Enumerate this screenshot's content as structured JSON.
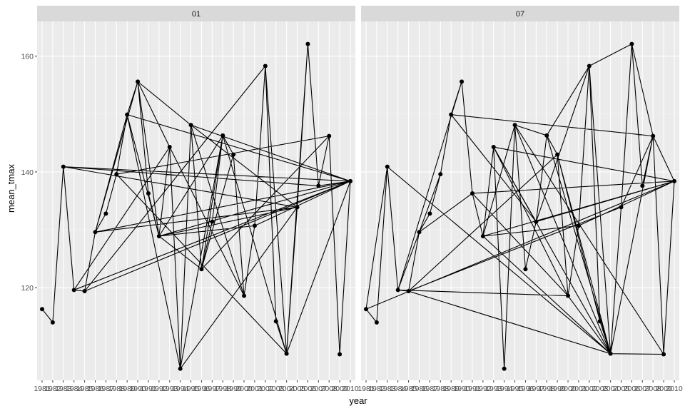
{
  "chart_data": {
    "type": "line",
    "facets": [
      "01",
      "07"
    ],
    "xlabel": "year",
    "ylabel": "mean_tmax",
    "x_ticks": [
      "1981",
      "1982",
      "1983",
      "1984",
      "1985",
      "1986",
      "1987",
      "1988",
      "1989",
      "1990",
      "1991",
      "1992",
      "1993",
      "1994",
      "1995",
      "1996",
      "1997",
      "1998",
      "1999",
      "2000",
      "2001",
      "2002",
      "2003",
      "2004",
      "2005",
      "2006",
      "2007",
      "2008",
      "2009",
      "2010"
    ],
    "y_ticks": [
      120,
      140,
      160
    ],
    "ylim": [
      104,
      166
    ],
    "grid": true,
    "points": [
      {
        "year": 1981,
        "mean_tmax": 116.3
      },
      {
        "year": 1982,
        "mean_tmax": 114.0
      },
      {
        "year": 1983,
        "mean_tmax": 140.9
      },
      {
        "year": 1984,
        "mean_tmax": 119.6
      },
      {
        "year": 1985,
        "mean_tmax": 119.4
      },
      {
        "year": 1986,
        "mean_tmax": 129.6
      },
      {
        "year": 1987,
        "mean_tmax": 132.8
      },
      {
        "year": 1988,
        "mean_tmax": 139.6
      },
      {
        "year": 1989,
        "mean_tmax": 149.9
      },
      {
        "year": 1990,
        "mean_tmax": 155.6
      },
      {
        "year": 1991,
        "mean_tmax": 136.3
      },
      {
        "year": 1992,
        "mean_tmax": 128.9
      },
      {
        "year": 1993,
        "mean_tmax": 144.3
      },
      {
        "year": 1994,
        "mean_tmax": 106.0
      },
      {
        "year": 1995,
        "mean_tmax": 148.1
      },
      {
        "year": 1996,
        "mean_tmax": 123.2
      },
      {
        "year": 1997,
        "mean_tmax": 131.4
      },
      {
        "year": 1998,
        "mean_tmax": 146.3
      },
      {
        "year": 1999,
        "mean_tmax": 143.0
      },
      {
        "year": 2000,
        "mean_tmax": 118.6
      },
      {
        "year": 2001,
        "mean_tmax": 130.7
      },
      {
        "year": 2002,
        "mean_tmax": 158.3
      },
      {
        "year": 2003,
        "mean_tmax": 114.2
      },
      {
        "year": 2004,
        "mean_tmax": 108.6
      },
      {
        "year": 2005,
        "mean_tmax": 133.9
      },
      {
        "year": 2006,
        "mean_tmax": 162.1
      },
      {
        "year": 2007,
        "mean_tmax": 137.6
      },
      {
        "year": 2008,
        "mean_tmax": 146.2
      },
      {
        "year": 2009,
        "mean_tmax": 108.5
      },
      {
        "year": 2010,
        "mean_tmax": 138.4
      }
    ],
    "panels": [
      {
        "facet": "01",
        "sequence": [
          1981,
          1982,
          1983,
          1984,
          1985,
          1986,
          1987,
          1988,
          1989,
          1990,
          1991,
          1992,
          1993,
          1994,
          1995,
          1996,
          1997,
          1998,
          1999,
          2000,
          2001,
          2002,
          2003,
          2004,
          2005,
          2006,
          2007,
          2008,
          2009,
          2010,
          1983,
          2010,
          1992,
          2001,
          2010,
          1989,
          1994,
          1998,
          2004,
          2010,
          1984,
          1993,
          2000,
          1995,
          2010,
          1985,
          2002,
          2004,
          1988,
          2008,
          1996,
          1992,
          2005,
          1983,
          2007,
          2010,
          1986,
          2005,
          1995,
          1990,
          1993,
          1994,
          2005,
          1992,
          1990,
          1986,
          1989,
          1992,
          1998,
          1996,
          1999,
          2000,
          2001,
          2002,
          2003,
          2004,
          2006,
          2007,
          2008,
          2009,
          2010
        ]
      },
      {
        "facet": "07",
        "sequence": [
          1981,
          1982,
          1983,
          1984,
          1985,
          1986,
          1987,
          1988,
          1989,
          1990,
          1991,
          1992,
          1993,
          1994,
          1995,
          1996,
          1997,
          1998,
          1999,
          2000,
          2001,
          2002,
          2003,
          2004,
          2005,
          2006,
          2007,
          2008,
          2009,
          2010,
          1981,
          1983,
          1984,
          1990,
          1991,
          1992,
          1995,
          1998,
          2002,
          2006,
          2008,
          2010,
          1993,
          2000,
          2004,
          2009,
          1995,
          2004,
          1998,
          2004,
          1983,
          2004,
          1999,
          2004,
          1993,
          1997,
          2010,
          1991,
          2000,
          1984,
          1988,
          1989,
          1990,
          1991,
          1992,
          1993,
          1994,
          1995,
          1996,
          1997,
          1998,
          1999,
          2000,
          2001,
          2002,
          2003,
          2004,
          2005,
          2006,
          2007,
          2008,
          2009,
          2010,
          1992,
          2001,
          2010,
          1991,
          1986,
          1985,
          1999,
          2003,
          2004,
          2008,
          1989,
          1997,
          2002,
          2004,
          1992,
          2004,
          1985,
          2005,
          2008
        ]
      }
    ]
  }
}
